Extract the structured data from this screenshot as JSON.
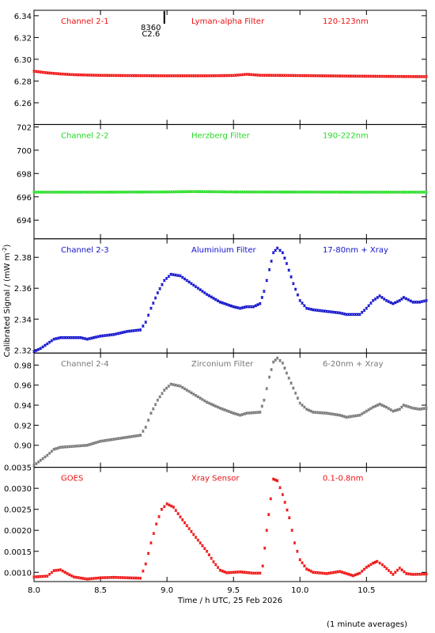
{
  "chart_data": {
    "type": "scatter",
    "xlabel": "Time / h UTC, 25 Feb 2026",
    "ylabel": "Calibrated Signal / (mW m",
    "ylabel_sup": "-2",
    "ylabel_end": ")",
    "footnote": "(1 minute averages)",
    "xlim": [
      8.0,
      10.95
    ],
    "x_ticks": [
      "8.0",
      "8.5",
      "9.0",
      "9.5",
      "10.0",
      "10.5"
    ],
    "x_tick_values": [
      8.0,
      8.5,
      9.0,
      9.5,
      10.0,
      10.5
    ],
    "marker_annotation": {
      "x": 8.98,
      "line1": "8360",
      "line2": "C2.6"
    },
    "panels": [
      {
        "name": "Channel 2-1",
        "filter": "Lyman-alpha Filter",
        "band": "120-123nm",
        "color": "#ee1111",
        "ylim": [
          6.24,
          6.345
        ],
        "y_ticks": [
          "6.26",
          "6.28",
          "6.30",
          "6.32",
          "6.34"
        ],
        "y_tick_values": [
          6.26,
          6.28,
          6.3,
          6.32,
          6.34
        ],
        "points": [
          [
            8.0,
            6.289
          ],
          [
            8.1,
            6.2875
          ],
          [
            8.2,
            6.2865
          ],
          [
            8.3,
            6.2858
          ],
          [
            8.5,
            6.2852
          ],
          [
            8.7,
            6.285
          ],
          [
            9.0,
            6.2848
          ],
          [
            9.3,
            6.2848
          ],
          [
            9.5,
            6.2851
          ],
          [
            9.6,
            6.2862
          ],
          [
            9.7,
            6.2853
          ],
          [
            10.0,
            6.285
          ],
          [
            10.3,
            6.2846
          ],
          [
            10.6,
            6.2843
          ],
          [
            10.95,
            6.284
          ]
        ]
      },
      {
        "name": "Channel 2-2",
        "filter": "Herzberg Filter",
        "band": "190-222nm",
        "color": "#22dd22",
        "ylim": [
          692.4,
          702.2
        ],
        "y_ticks": [
          "694",
          "696",
          "698",
          "700",
          "702"
        ],
        "y_tick_values": [
          694,
          696,
          698,
          700,
          702
        ],
        "points": [
          [
            8.0,
            696.4
          ],
          [
            8.5,
            696.4
          ],
          [
            9.0,
            696.42
          ],
          [
            9.2,
            696.45
          ],
          [
            9.5,
            696.42
          ],
          [
            10.0,
            696.41
          ],
          [
            10.5,
            696.4
          ],
          [
            10.95,
            696.4
          ]
        ]
      },
      {
        "name": "Channel 2-3",
        "filter": "Aluminium Filter",
        "band": "17-80nm + Xray",
        "color": "#1111cc",
        "ylim": [
          2.318,
          2.392
        ],
        "y_ticks": [
          "2.32",
          "2.34",
          "2.36",
          "2.38"
        ],
        "y_tick_values": [
          2.32,
          2.34,
          2.36,
          2.38
        ],
        "points": [
          [
            8.0,
            2.319
          ],
          [
            8.05,
            2.321
          ],
          [
            8.1,
            2.324
          ],
          [
            8.15,
            2.327
          ],
          [
            8.2,
            2.328
          ],
          [
            8.3,
            2.328
          ],
          [
            8.35,
            2.328
          ],
          [
            8.4,
            2.327
          ],
          [
            8.45,
            2.328
          ],
          [
            8.5,
            2.329
          ],
          [
            8.6,
            2.33
          ],
          [
            8.7,
            2.332
          ],
          [
            8.8,
            2.333
          ],
          [
            8.84,
            2.338
          ],
          [
            8.88,
            2.347
          ],
          [
            8.93,
            2.357
          ],
          [
            8.98,
            2.365
          ],
          [
            9.03,
            2.369
          ],
          [
            9.1,
            2.368
          ],
          [
            9.2,
            2.362
          ],
          [
            9.3,
            2.356
          ],
          [
            9.4,
            2.351
          ],
          [
            9.5,
            2.348
          ],
          [
            9.55,
            2.347
          ],
          [
            9.6,
            2.348
          ],
          [
            9.65,
            2.348
          ],
          [
            9.7,
            2.35
          ],
          [
            9.73,
            2.358
          ],
          [
            9.77,
            2.372
          ],
          [
            9.8,
            2.383
          ],
          [
            9.83,
            2.386
          ],
          [
            9.87,
            2.383
          ],
          [
            9.9,
            2.376
          ],
          [
            9.95,
            2.363
          ],
          [
            10.0,
            2.352
          ],
          [
            10.05,
            2.347
          ],
          [
            10.1,
            2.346
          ],
          [
            10.2,
            2.345
          ],
          [
            10.3,
            2.344
          ],
          [
            10.35,
            2.343
          ],
          [
            10.45,
            2.343
          ],
          [
            10.5,
            2.347
          ],
          [
            10.55,
            2.352
          ],
          [
            10.6,
            2.355
          ],
          [
            10.65,
            2.352
          ],
          [
            10.7,
            2.35
          ],
          [
            10.75,
            2.352
          ],
          [
            10.78,
            2.354
          ],
          [
            10.85,
            2.351
          ],
          [
            10.9,
            2.351
          ],
          [
            10.95,
            2.352
          ]
        ]
      },
      {
        "name": "Channel 2-4",
        "filter": "Zirconium Filter",
        "band": "6-20nm + Xray",
        "color": "#777777",
        "ylim": [
          0.878,
          0.992
        ],
        "y_ticks": [
          "0.90",
          "0.92",
          "0.94",
          "0.96",
          "0.98"
        ],
        "y_tick_values": [
          0.9,
          0.92,
          0.94,
          0.96,
          0.98
        ],
        "points": [
          [
            8.0,
            0.88
          ],
          [
            8.05,
            0.885
          ],
          [
            8.1,
            0.89
          ],
          [
            8.15,
            0.896
          ],
          [
            8.2,
            0.898
          ],
          [
            8.3,
            0.899
          ],
          [
            8.4,
            0.9
          ],
          [
            8.5,
            0.904
          ],
          [
            8.6,
            0.906
          ],
          [
            8.7,
            0.908
          ],
          [
            8.8,
            0.91
          ],
          [
            8.84,
            0.918
          ],
          [
            8.88,
            0.932
          ],
          [
            8.93,
            0.945
          ],
          [
            8.98,
            0.955
          ],
          [
            9.03,
            0.961
          ],
          [
            9.1,
            0.959
          ],
          [
            9.2,
            0.951
          ],
          [
            9.3,
            0.943
          ],
          [
            9.4,
            0.937
          ],
          [
            9.5,
            0.932
          ],
          [
            9.55,
            0.93
          ],
          [
            9.6,
            0.932
          ],
          [
            9.7,
            0.933
          ],
          [
            9.73,
            0.945
          ],
          [
            9.77,
            0.968
          ],
          [
            9.8,
            0.983
          ],
          [
            9.83,
            0.987
          ],
          [
            9.87,
            0.982
          ],
          [
            9.9,
            0.972
          ],
          [
            9.95,
            0.957
          ],
          [
            10.0,
            0.942
          ],
          [
            10.05,
            0.936
          ],
          [
            10.1,
            0.933
          ],
          [
            10.2,
            0.932
          ],
          [
            10.3,
            0.93
          ],
          [
            10.35,
            0.928
          ],
          [
            10.45,
            0.93
          ],
          [
            10.5,
            0.934
          ],
          [
            10.55,
            0.938
          ],
          [
            10.6,
            0.941
          ],
          [
            10.65,
            0.938
          ],
          [
            10.7,
            0.934
          ],
          [
            10.75,
            0.936
          ],
          [
            10.78,
            0.94
          ],
          [
            10.85,
            0.937
          ],
          [
            10.9,
            0.936
          ],
          [
            10.95,
            0.937
          ]
        ]
      },
      {
        "name": "GOES",
        "filter": "Xray Sensor",
        "band": "0.1-0.8nm",
        "color": "#ee1111",
        "ylim": [
          0.00078,
          0.0035
        ],
        "y_ticks": [
          "0.0010",
          "0.0015",
          "0.0020",
          "0.0025",
          "0.0030",
          "0.0035"
        ],
        "y_tick_values": [
          0.001,
          0.0015,
          0.002,
          0.0025,
          0.003,
          0.0035
        ],
        "points": [
          [
            8.0,
            0.00089
          ],
          [
            8.1,
            0.00091
          ],
          [
            8.15,
            0.00104
          ],
          [
            8.2,
            0.00106
          ],
          [
            8.25,
            0.00097
          ],
          [
            8.3,
            0.00089
          ],
          [
            8.4,
            0.00084
          ],
          [
            8.5,
            0.00087
          ],
          [
            8.6,
            0.00088
          ],
          [
            8.7,
            0.00087
          ],
          [
            8.8,
            0.00086
          ],
          [
            8.84,
            0.0012
          ],
          [
            8.88,
            0.0017
          ],
          [
            8.92,
            0.00215
          ],
          [
            8.96,
            0.0025
          ],
          [
            9.0,
            0.00263
          ],
          [
            9.05,
            0.00255
          ],
          [
            9.1,
            0.00232
          ],
          [
            9.2,
            0.0019
          ],
          [
            9.3,
            0.0015
          ],
          [
            9.35,
            0.00125
          ],
          [
            9.4,
            0.00105
          ],
          [
            9.45,
            0.00099
          ],
          [
            9.55,
            0.00101
          ],
          [
            9.65,
            0.00098
          ],
          [
            9.7,
            0.00098
          ],
          [
            9.72,
            0.00115
          ],
          [
            9.75,
            0.002
          ],
          [
            9.78,
            0.00275
          ],
          [
            9.8,
            0.00322
          ],
          [
            9.83,
            0.00318
          ],
          [
            9.87,
            0.00285
          ],
          [
            9.92,
            0.0023
          ],
          [
            9.96,
            0.0017
          ],
          [
            10.0,
            0.0013
          ],
          [
            10.05,
            0.00108
          ],
          [
            10.1,
            0.001
          ],
          [
            10.2,
            0.00097
          ],
          [
            10.3,
            0.00102
          ],
          [
            10.4,
            0.00092
          ],
          [
            10.45,
            0.00098
          ],
          [
            10.5,
            0.00112
          ],
          [
            10.55,
            0.00122
          ],
          [
            10.58,
            0.00126
          ],
          [
            10.62,
            0.00118
          ],
          [
            10.7,
            0.00095
          ],
          [
            10.75,
            0.0011
          ],
          [
            10.8,
            0.00097
          ],
          [
            10.85,
            0.00095
          ],
          [
            10.95,
            0.00096
          ]
        ]
      }
    ]
  }
}
